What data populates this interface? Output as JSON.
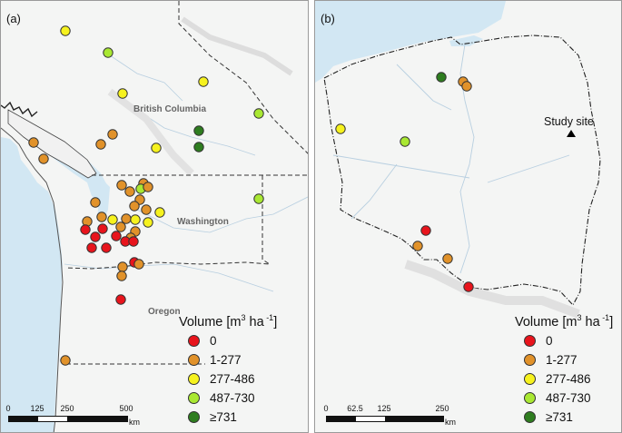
{
  "panel_a": {
    "label": "(a)",
    "places": {
      "bc": "British Columbia",
      "wa": "Washington",
      "or": "Oregon"
    },
    "legend": {
      "title_main": "Volume [m",
      "title_sup1": "3",
      "title_mid": " ha",
      "title_sup2": " -1",
      "title_end": "]",
      "items": [
        "0",
        "1-277",
        "277-486",
        "487-730",
        "≥731"
      ]
    },
    "scale": {
      "ticks": [
        "0",
        "125",
        "250",
        "500"
      ],
      "unit": "km"
    }
  },
  "panel_b": {
    "label": "(b)",
    "study_site": "Study site",
    "legend": {
      "title_main": "Volume [m",
      "title_sup1": "3",
      "title_mid": " ha",
      "title_sup2": " -1",
      "title_end": "]",
      "items": [
        "0",
        "1-277",
        "277-486",
        "487-730",
        "≥731"
      ]
    },
    "scale": {
      "ticks": [
        "0",
        "62.5",
        "125",
        "250"
      ],
      "unit": "km"
    }
  },
  "colors": {
    "c0": "#e8141c",
    "c1": "#e1922a",
    "c2": "#f6f21e",
    "c3": "#a9e832",
    "c4": "#2e7d1f",
    "water": "#d2e7f3",
    "land": "#f4f5f4",
    "border": "#333333"
  }
}
